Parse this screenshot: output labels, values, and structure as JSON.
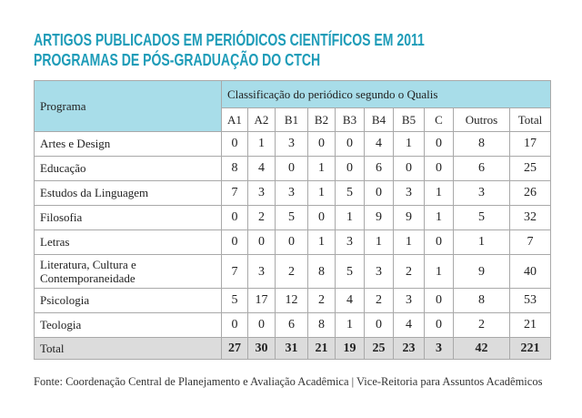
{
  "title": [
    "ARTIGOS PUBLICADOS EM PERIÓDICOS CIENTÍFICOS EM 2011",
    "PROGRAMAS DE PÓS-GRADUAÇÃO DO CTCH"
  ],
  "table": {
    "header_program": "Programa",
    "header_group": "Classificação do periódico segundo o Qualis",
    "columns": [
      "A1",
      "A2",
      "B1",
      "B2",
      "B3",
      "B4",
      "B5",
      "C",
      "Outros",
      "Total"
    ],
    "rows": [
      [
        "Artes e Design",
        0,
        1,
        3,
        0,
        0,
        4,
        1,
        0,
        8,
        17
      ],
      [
        "Educação",
        8,
        4,
        0,
        1,
        0,
        6,
        0,
        0,
        6,
        25
      ],
      [
        "Estudos da Linguagem",
        7,
        3,
        3,
        1,
        5,
        0,
        3,
        1,
        3,
        26
      ],
      [
        "Filosofia",
        0,
        2,
        5,
        0,
        1,
        9,
        9,
        1,
        5,
        32
      ],
      [
        "Letras",
        0,
        0,
        0,
        1,
        3,
        1,
        1,
        0,
        1,
        7
      ],
      [
        "Literatura, Cultura e Contemporaneidade",
        7,
        3,
        2,
        8,
        5,
        3,
        2,
        1,
        9,
        40
      ],
      [
        "Psicologia",
        5,
        17,
        12,
        2,
        4,
        2,
        3,
        0,
        8,
        53
      ],
      [
        "Teologia",
        0,
        0,
        6,
        8,
        1,
        0,
        4,
        0,
        2,
        21
      ]
    ],
    "total": [
      "Total",
      27,
      30,
      31,
      21,
      19,
      25,
      23,
      3,
      42,
      221
    ]
  },
  "source": "Fonte: Coordenação Central de Planejamento e Avaliação Acadêmica | Vice-Reitoria para Assuntos Acadêmicos"
}
